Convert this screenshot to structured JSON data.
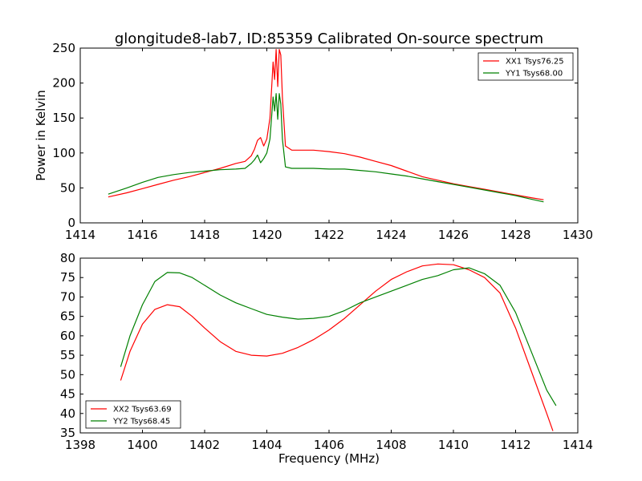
{
  "figure": {
    "title": "glongitude8-lab7, ID:85359 Calibrated On-source spectrum"
  },
  "chart_data": [
    {
      "type": "line",
      "title": "glongitude8-lab7, ID:85359 Calibrated On-source spectrum",
      "xlabel": "",
      "ylabel": "Power in Kelvin",
      "xlim": [
        1414,
        1430
      ],
      "ylim": [
        0,
        250
      ],
      "xticks": [
        1414,
        1416,
        1418,
        1420,
        1422,
        1424,
        1426,
        1428,
        1430
      ],
      "yticks": [
        0,
        50,
        100,
        150,
        200,
        250
      ],
      "grid": false,
      "legend_position": "top-right",
      "series": [
        {
          "name": "XX1 Tsys76.25",
          "color": "#ff0000",
          "x": [
            1414.9,
            1415.5,
            1416.0,
            1416.5,
            1417.0,
            1417.5,
            1418.0,
            1418.5,
            1419.0,
            1419.3,
            1419.5,
            1419.6,
            1419.7,
            1419.8,
            1419.9,
            1420.0,
            1420.1,
            1420.2,
            1420.25,
            1420.3,
            1420.35,
            1420.4,
            1420.45,
            1420.5,
            1420.6,
            1420.8,
            1421.0,
            1421.5,
            1422.0,
            1422.5,
            1423.0,
            1423.5,
            1424.0,
            1424.5,
            1425.0,
            1425.5,
            1426.0,
            1426.5,
            1427.0,
            1427.5,
            1428.0,
            1428.5,
            1428.9
          ],
          "y": [
            37,
            43,
            49,
            55,
            61,
            66,
            72,
            78,
            85,
            88,
            96,
            105,
            118,
            122,
            110,
            120,
            150,
            230,
            205,
            248,
            195,
            248,
            240,
            180,
            110,
            104,
            104,
            104,
            102,
            99,
            94,
            88,
            82,
            74,
            66,
            61,
            56,
            52,
            48,
            44,
            40,
            36,
            33
          ]
        },
        {
          "name": "YY1 Tsys68.00",
          "color": "#008000",
          "x": [
            1414.9,
            1415.5,
            1416.0,
            1416.5,
            1417.0,
            1417.5,
            1418.0,
            1418.5,
            1419.0,
            1419.3,
            1419.5,
            1419.6,
            1419.7,
            1419.8,
            1419.9,
            1420.0,
            1420.1,
            1420.2,
            1420.25,
            1420.3,
            1420.35,
            1420.4,
            1420.45,
            1420.5,
            1420.6,
            1420.8,
            1421.0,
            1421.5,
            1422.0,
            1422.5,
            1423.0,
            1423.5,
            1424.0,
            1424.5,
            1425.0,
            1425.5,
            1426.0,
            1426.5,
            1427.0,
            1427.5,
            1428.0,
            1428.5,
            1428.9
          ],
          "y": [
            41,
            50,
            58,
            65,
            69,
            72,
            74,
            76,
            77,
            78,
            85,
            90,
            97,
            86,
            92,
            100,
            120,
            180,
            160,
            185,
            148,
            185,
            170,
            120,
            80,
            78,
            78,
            78,
            77,
            77,
            75,
            73,
            70,
            67,
            63,
            59,
            55,
            51,
            47,
            43,
            39,
            34,
            30
          ]
        }
      ]
    },
    {
      "type": "line",
      "title": "",
      "xlabel": "Frequency (MHz)",
      "ylabel": "",
      "xlim": [
        1398,
        1414
      ],
      "ylim": [
        35,
        80
      ],
      "xticks": [
        1398,
        1400,
        1402,
        1404,
        1406,
        1408,
        1410,
        1412,
        1414
      ],
      "yticks": [
        35,
        40,
        45,
        50,
        55,
        60,
        65,
        70,
        75,
        80
      ],
      "grid": false,
      "legend_position": "bottom-left",
      "series": [
        {
          "name": "XX2 Tsys63.69",
          "color": "#ff0000",
          "x": [
            1399.3,
            1399.6,
            1400.0,
            1400.4,
            1400.8,
            1401.2,
            1401.6,
            1402.0,
            1402.5,
            1403.0,
            1403.5,
            1404.0,
            1404.5,
            1405.0,
            1405.5,
            1406.0,
            1406.5,
            1407.0,
            1407.5,
            1408.0,
            1408.5,
            1409.0,
            1409.5,
            1410.0,
            1410.5,
            1411.0,
            1411.5,
            1412.0,
            1412.5,
            1413.0,
            1413.2
          ],
          "y": [
            48.5,
            56,
            63,
            66.8,
            68,
            67.5,
            65,
            62,
            58.5,
            56,
            55,
            54.8,
            55.5,
            57,
            59,
            61.5,
            64.5,
            68,
            71.5,
            74.5,
            76.5,
            78,
            78.5,
            78.3,
            77,
            75,
            71,
            62,
            51,
            40,
            35.5
          ]
        },
        {
          "name": "YY2 Tsys68.45",
          "color": "#008000",
          "x": [
            1399.3,
            1399.6,
            1400.0,
            1400.4,
            1400.8,
            1401.2,
            1401.6,
            1402.0,
            1402.5,
            1403.0,
            1403.5,
            1404.0,
            1404.5,
            1405.0,
            1405.5,
            1406.0,
            1406.5,
            1407.0,
            1407.5,
            1408.0,
            1408.5,
            1409.0,
            1409.5,
            1410.0,
            1410.5,
            1411.0,
            1411.5,
            1412.0,
            1412.5,
            1413.0,
            1413.3
          ],
          "y": [
            52,
            60,
            68,
            74,
            76.3,
            76.2,
            75,
            73,
            70.5,
            68.5,
            67,
            65.5,
            64.8,
            64.3,
            64.5,
            65,
            66.5,
            68.5,
            70,
            71.5,
            73,
            74.5,
            75.5,
            77,
            77.5,
            76,
            73,
            66,
            56,
            46,
            42
          ]
        }
      ]
    }
  ]
}
